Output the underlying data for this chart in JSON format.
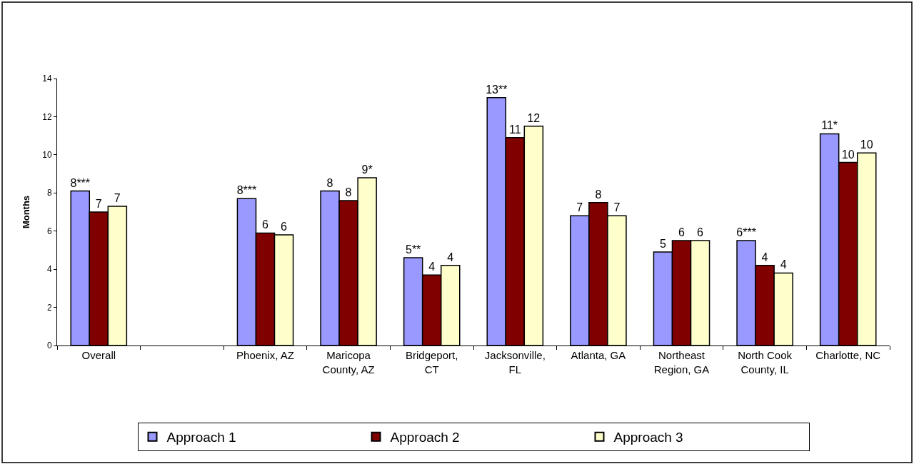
{
  "chart_data": {
    "type": "bar",
    "ylabel": "Months",
    "categories": [
      "Overall",
      null,
      "Phoenix, AZ",
      "Maricopa County, AZ",
      "Bridgeport, CT",
      "Jacksonville, FL",
      "Atlanta, GA",
      "Northeast Region, GA",
      "North Cook County, IL",
      "Charlotte, NC"
    ],
    "series": [
      {
        "name": "Approach 1",
        "color": "#9999ff",
        "values": [
          8.1,
          null,
          7.7,
          8.1,
          4.6,
          13.0,
          6.8,
          4.9,
          5.5,
          11.1
        ],
        "value_labels": [
          "8***",
          null,
          "8***",
          "8",
          "5**",
          "13**",
          "7",
          "5",
          "6***",
          "11*"
        ]
      },
      {
        "name": "Approach 2",
        "color": "#800000",
        "values": [
          7.0,
          null,
          5.9,
          7.6,
          3.7,
          10.9,
          7.5,
          5.5,
          4.2,
          9.6
        ],
        "value_labels": [
          "7",
          null,
          "6",
          "8",
          "4",
          "11",
          "8",
          "6",
          "4",
          "10"
        ]
      },
      {
        "name": "Approach 3",
        "color": "#ffffcc",
        "values": [
          7.3,
          null,
          5.8,
          8.8,
          4.2,
          11.5,
          6.8,
          5.5,
          3.8,
          10.1
        ],
        "value_labels": [
          "7",
          null,
          "6",
          "9*",
          "4",
          "12",
          "7",
          "6",
          "4",
          "10"
        ]
      }
    ],
    "ylim": [
      0,
      14
    ],
    "yticks": [
      0,
      2,
      4,
      6,
      8,
      10,
      12,
      14
    ],
    "legend": "bottom"
  }
}
